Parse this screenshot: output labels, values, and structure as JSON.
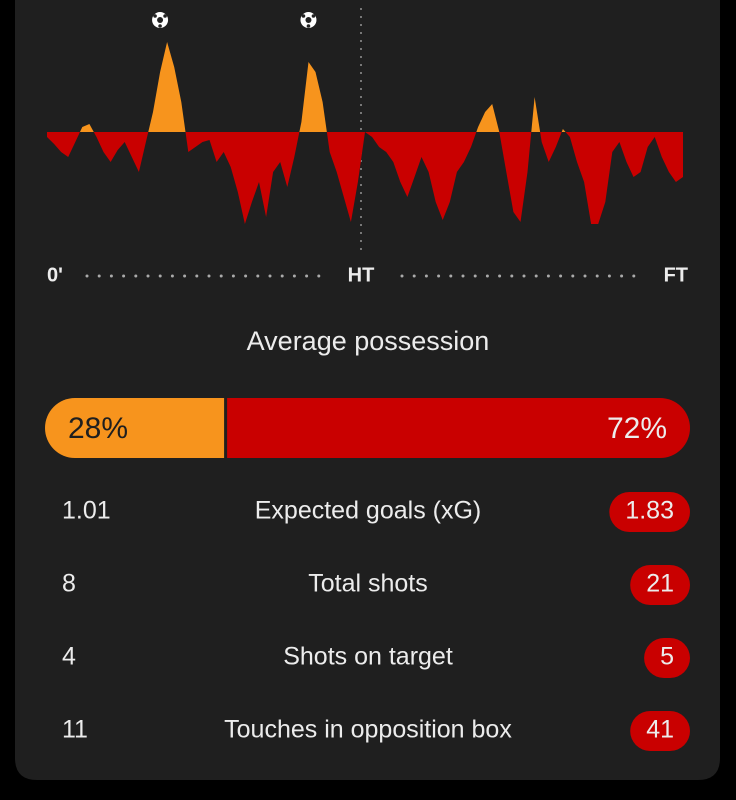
{
  "momentum": {
    "start_label": "0'",
    "half_label": "HT",
    "end_label": "FT",
    "home_color": "#f7941d",
    "away_color": "#c90000",
    "values": [
      -5,
      -12,
      -20,
      -25,
      -10,
      5,
      8,
      -5,
      -20,
      -30,
      -18,
      -10,
      -25,
      -40,
      -10,
      20,
      60,
      90,
      65,
      30,
      -20,
      -15,
      -10,
      -8,
      -30,
      -20,
      -35,
      -60,
      -92,
      -70,
      -50,
      -85,
      -40,
      -30,
      -55,
      -25,
      10,
      70,
      60,
      30,
      -20,
      -40,
      -65,
      -90,
      -50,
      0,
      -5,
      -15,
      -20,
      -30,
      -50,
      -65,
      -45,
      -25,
      -40,
      -70,
      -88,
      -70,
      -40,
      -30,
      -15,
      5,
      20,
      28,
      0,
      -40,
      -80,
      -90,
      -40,
      35,
      -10,
      -30,
      -15,
      3,
      -5,
      -30,
      -50,
      -92,
      -92,
      -70,
      -20,
      -10,
      -30,
      -45,
      -40,
      -15,
      -5,
      -25,
      -40,
      -50,
      -45
    ],
    "goals": [
      16,
      37
    ]
  },
  "possession": {
    "title": "Average possession",
    "home": 28,
    "away": 72,
    "home_label": "28%",
    "away_label": "72%"
  },
  "stats": [
    {
      "home": "1.01",
      "label": "Expected goals (xG)",
      "away": "1.83"
    },
    {
      "home": "8",
      "label": "Total shots",
      "away": "21"
    },
    {
      "home": "4",
      "label": "Shots on target",
      "away": "5"
    },
    {
      "home": "11",
      "label": "Touches in opposition box",
      "away": "41"
    }
  ]
}
